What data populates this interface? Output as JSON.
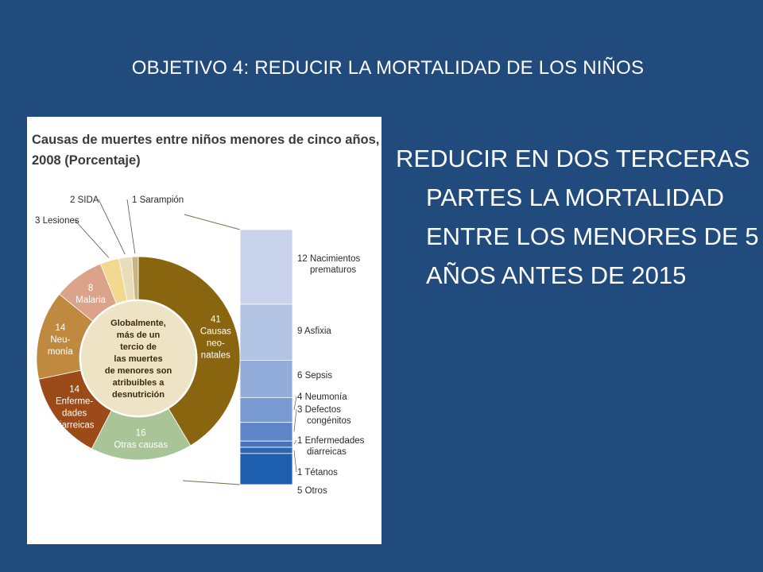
{
  "slide": {
    "title": "OBJETIVO 4:  REDUCIR LA MORTALIDAD DE LOS NIÑOS",
    "body": "REDUCIR EN DOS TERCERAS PARTES LA MORTALIDAD ENTRE LOS MENORES DE 5 AÑOS ANTES DE 2015"
  },
  "chart_data": [
    {
      "type": "pie",
      "title": "Causas de muertes entre niños menores de cinco años, 2008 (Porcentaje)",
      "title_lines": [
        "Causas de muertes entre niños menores de cinco años,",
        "2008 (Porcentaje)"
      ],
      "center_note_lines": [
        "Globalmente,",
        "más de un",
        "tercio de",
        "las muertes",
        "de menores son",
        "atribuibles a",
        "desnutrición"
      ],
      "slices": [
        {
          "value": 41,
          "value_label": "41",
          "label_lines": [
            "Causas",
            "neo-",
            "natales"
          ],
          "color": "#8a6510",
          "label_color": "#ffffff"
        },
        {
          "value": 16,
          "value_label": "16",
          "label_lines": [
            "Otras causas"
          ],
          "color": "#a9c496",
          "label_color": "#ffffff"
        },
        {
          "value": 14,
          "value_label": "14",
          "label_lines": [
            "Enferme-",
            "dades",
            "diarreicas"
          ],
          "color": "#9c4a17",
          "label_color": "#ffffff"
        },
        {
          "value": 14,
          "value_label": "14",
          "label_lines": [
            "Neu-",
            "monía"
          ],
          "color": "#bf8a3f",
          "label_color": "#ffffff"
        },
        {
          "value": 8,
          "value_label": "8",
          "label_lines": [
            "Malaria"
          ],
          "color": "#dba48a",
          "label_color": "#ffffff"
        },
        {
          "value": 3,
          "value_label": "3 Lesiones",
          "label_lines": [],
          "color": "#f3d890",
          "label_color": "#2a2a2a"
        },
        {
          "value": 2,
          "value_label": "2 SIDA",
          "label_lines": [],
          "color": "#e8ddb8",
          "label_color": "#2a2a2a"
        },
        {
          "value": 1,
          "value_label": "1 Sarampión",
          "label_lines": [],
          "color": "#c8b582",
          "label_color": "#2a2a2a"
        }
      ]
    },
    {
      "type": "bar",
      "stacked": true,
      "note": "Desglose de 41 Causas neonatales",
      "segments": [
        {
          "value": 12,
          "label_lines": [
            "12 Nacimientos",
            "prematuros"
          ],
          "color": "#c9d4ec"
        },
        {
          "value": 9,
          "label_lines": [
            "9 Asfixia"
          ],
          "color": "#b2c3e4"
        },
        {
          "value": 6,
          "label_lines": [
            "6 Sepsis"
          ],
          "color": "#93addb"
        },
        {
          "value": 4,
          "label_lines": [
            "4 Neumonía"
          ],
          "color": "#7999d2"
        },
        {
          "value": 3,
          "label_lines": [
            "3 Defectos",
            "congénitos"
          ],
          "color": "#5d85c8"
        },
        {
          "value": 1,
          "label_lines": [
            "1 Enfermedades",
            "diarreicas"
          ],
          "color": "#4574bd"
        },
        {
          "value": 1,
          "label_lines": [
            "1 Tétanos"
          ],
          "color": "#2d66b4"
        },
        {
          "value": 5,
          "label_lines": [
            "5 Otros"
          ],
          "color": "#1d5fae"
        }
      ]
    }
  ]
}
